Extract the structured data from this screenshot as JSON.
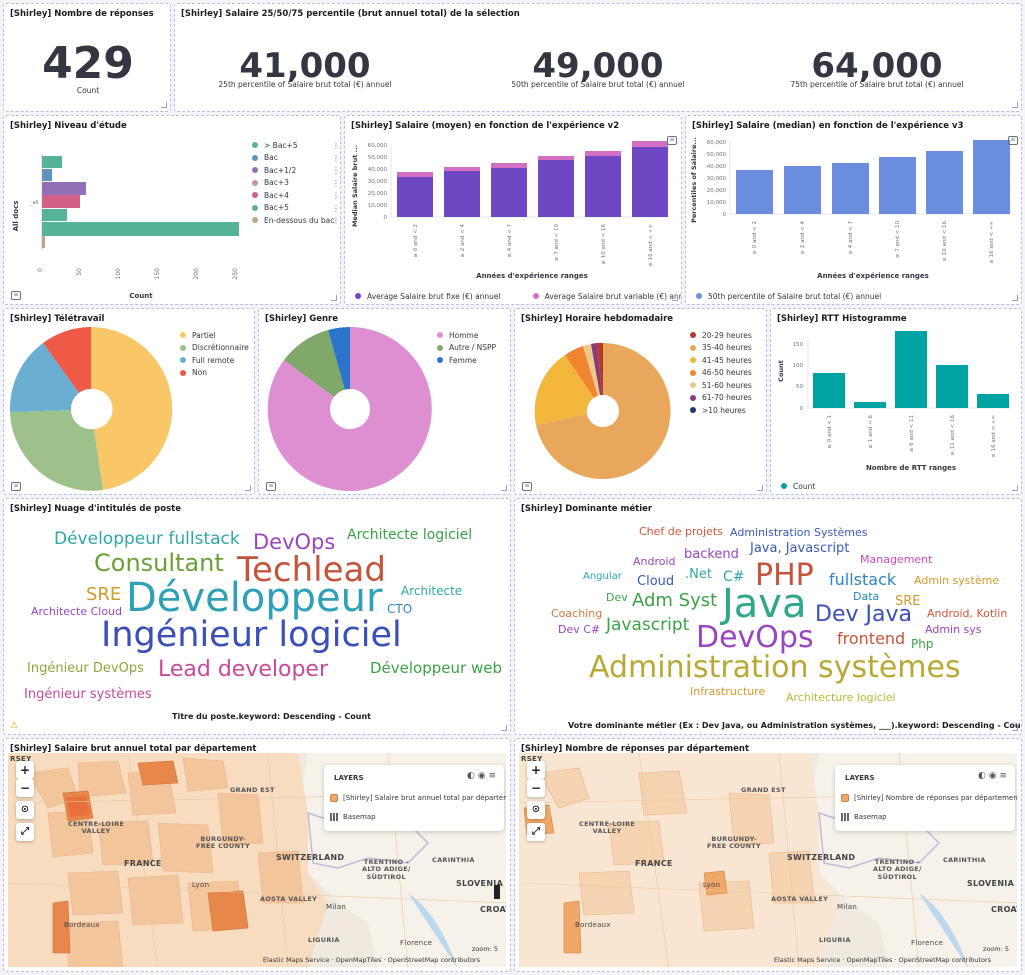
{
  "panels": {
    "count": {
      "title": "[Shirley] Nombre de réponses",
      "value": "429",
      "label": "Count"
    },
    "salary_percentiles": {
      "title": "[Shirley] Salaire 25/50/75 percentile (brut annuel total) de la sélection",
      "metrics": [
        {
          "value": "41,000",
          "label": "25th percentile of Salaire brut total (€) annuel"
        },
        {
          "value": "49,000",
          "label": "50th percentile of Salaire brut total (€) annuel"
        },
        {
          "value": "64,000",
          "label": "75th percentile of Salaire brut total (€) annuel"
        }
      ]
    },
    "niveau": {
      "title": "[Shirley] Niveau d'étude",
      "ylabel": "All docs",
      "xlabel": "Count",
      "ylabel_small": "_all",
      "xticks": [
        "0",
        "50",
        "100",
        "150",
        "200",
        "250"
      ],
      "legend": [
        {
          "label": "> Bac+5",
          "color": "#54b399"
        },
        {
          "label": "Bac",
          "color": "#6092c0"
        },
        {
          "label": "Bac+1/2",
          "color": "#9170b8"
        },
        {
          "label": "Bac+3",
          "color": "#ca8eae"
        },
        {
          "label": "Bac+4",
          "color": "#d36086"
        },
        {
          "label": "Bac+5",
          "color": "#54b399"
        },
        {
          "label": "En-dessous du bac",
          "color": "#b9a888"
        }
      ]
    },
    "salaire_moyen": {
      "title": "[Shirley] Salaire (moyen) en fonction de l'expérience v2",
      "ylabel": "Median Salaire brut ...",
      "xlabel": "Années d'expérience ranges",
      "yticks": [
        "0",
        "10,000",
        "20,000",
        "30,000",
        "40,000",
        "50,000",
        "60,000"
      ],
      "xticks": [
        "≥ 0 and < 2",
        "≥ 2 and < 4",
        "≥ 4 and < 7",
        "≥ 7 and < 10",
        "≥ 10 and < 16",
        "≥ 16 and < +∞"
      ],
      "legend": [
        {
          "label": "Average Salaire brut fixe (€) annuel",
          "color": "#6f47c2"
        },
        {
          "label": "Average Salaire brut variable (€) annuel",
          "color": "#d36fc2"
        }
      ]
    },
    "salaire_median": {
      "title": "[Shirley] Salaire (median) en fonction de l'expérience v3",
      "ylabel": "Percentiles of Salaire...",
      "xlabel": "Années d'expérience ranges",
      "yticks": [
        "0",
        "10,000",
        "20,000",
        "30,000",
        "40,000",
        "50,000",
        "60,000"
      ],
      "xticks": [
        "≥ 0 and < 2",
        "≥ 2 and < 4",
        "≥ 4 and < 7",
        "≥ 7 and < 10",
        "≥ 10 and < 16",
        "≥ 16 and < +∞"
      ],
      "legend": [
        {
          "label": "50th percentile of Salaire brut total (€) annuel",
          "color": "#6b8de0"
        }
      ]
    },
    "teletravail": {
      "title": "[Shirley] Télétravail",
      "legend": [
        {
          "label": "Partiel",
          "color": "#f9c767"
        },
        {
          "label": "Discrétionnaire",
          "color": "#9cc18a"
        },
        {
          "label": "Full remote",
          "color": "#6aaed2"
        },
        {
          "label": "Non",
          "color": "#ef5a46"
        }
      ]
    },
    "genre": {
      "title": "[Shirley] Genre",
      "legend": [
        {
          "label": "Homme",
          "color": "#de8fd2"
        },
        {
          "label": "Autre / NSPP",
          "color": "#80a86a"
        },
        {
          "label": "Femme",
          "color": "#2a74c9"
        }
      ]
    },
    "horaire": {
      "title": "[Shirley] Horaire hebdomadaire",
      "legend": [
        {
          "label": "20-29 heures",
          "color": "#b23a2a"
        },
        {
          "label": "35-40 heures",
          "color": "#e9a75c"
        },
        {
          "label": "41-45 heures",
          "color": "#f2b63a"
        },
        {
          "label": "46-50 heures",
          "color": "#f0852f"
        },
        {
          "label": "51-60 heures",
          "color": "#eec98a"
        },
        {
          "label": "61-70 heures",
          "color": "#8a3a7a"
        },
        {
          "label": ">10 heures",
          "color": "#1c3a6a"
        }
      ]
    },
    "rtt": {
      "title": "[Shirley] RTT Histogramme",
      "ylabel": "Count",
      "xlabel": "Nombre de RTT ranges",
      "yticks": [
        "0",
        "50",
        "100",
        "150"
      ],
      "xticks": [
        "≥ 0 and < 1",
        "≥ 1 and < 6",
        "≥ 6 and < 11",
        "≥ 11 and < 16",
        "≥ 16 and < +∞"
      ],
      "legend": [
        {
          "label": "Count",
          "color": "#00a3a3"
        }
      ]
    },
    "nuage_postes": {
      "title": "[Shirley] Nuage d'intitulés de poste",
      "footer": "Titre du poste.keyword: Descending - Count",
      "words": [
        {
          "text": "Développeur fullstack",
          "color": "#2fa7a7"
        },
        {
          "text": "DevOps",
          "color": "#9b45c1"
        },
        {
          "text": "Architecte logiciel",
          "color": "#3aa345"
        },
        {
          "text": "Consultant",
          "color": "#6aa035"
        },
        {
          "text": "Techlead",
          "color": "#c4543a"
        },
        {
          "text": "SRE",
          "color": "#d29a2a"
        },
        {
          "text": "Développeur",
          "color": "#2fa0b5"
        },
        {
          "text": "Architecte",
          "color": "#2fa7a7"
        },
        {
          "text": "Architecte Cloud",
          "color": "#9b45c1"
        },
        {
          "text": "CTO",
          "color": "#2a86c4"
        },
        {
          "text": "Ingénieur logiciel",
          "color": "#3a4fb8"
        },
        {
          "text": "Ingénieur DevOps",
          "color": "#8aa83a"
        },
        {
          "text": "Lead developer",
          "color": "#c84a9a"
        },
        {
          "text": "Développeur web",
          "color": "#3aa345"
        },
        {
          "text": "Ingénieur systèmes",
          "color": "#c84a9a"
        }
      ]
    },
    "dominante": {
      "title": "[Shirley] Dominante métier",
      "footer": "Votre dominante métier (Ex : Dev Java, ou Administration systèmes, ___).keyword: Descending - Count",
      "words": [
        {
          "text": "Chef de projets",
          "color": "#d2553a"
        },
        {
          "text": "Administration Systèmes",
          "color": "#3a5ab8"
        },
        {
          "text": "backend",
          "color": "#9b45c1"
        },
        {
          "text": "Java, Javascript",
          "color": "#3a5ab8"
        },
        {
          "text": "Android",
          "color": "#9b45c1"
        },
        {
          "text": "Management",
          "color": "#c84ab5"
        },
        {
          "text": "Angular",
          "color": "#2fa7a7"
        },
        {
          "text": "Cloud",
          "color": "#3a5ab8"
        },
        {
          "text": ".Net",
          "color": "#2fa7a7"
        },
        {
          "text": "C#",
          "color": "#2fa7a7"
        },
        {
          "text": "PHP",
          "color": "#c4543a"
        },
        {
          "text": "fullstack",
          "color": "#2a86c4"
        },
        {
          "text": "Admin système",
          "color": "#d29a2a"
        },
        {
          "text": "Dev",
          "color": "#3aa345"
        },
        {
          "text": "Adm Syst",
          "color": "#3aa345"
        },
        {
          "text": "Java",
          "color": "#2fa78a"
        },
        {
          "text": "Data",
          "color": "#2a86c4"
        },
        {
          "text": "SRE",
          "color": "#d29a2a"
        },
        {
          "text": "Coaching",
          "color": "#d27a3a"
        },
        {
          "text": "Dev Java",
          "color": "#3a4fb8"
        },
        {
          "text": "Android, Kotlin",
          "color": "#d2553a"
        },
        {
          "text": "Dev C#",
          "color": "#9b45c1"
        },
        {
          "text": "Javascript",
          "color": "#3aa345"
        },
        {
          "text": "DevOps",
          "color": "#9b45c1"
        },
        {
          "text": "frontend",
          "color": "#c4543a"
        },
        {
          "text": "Admin sys",
          "color": "#9b45c1"
        },
        {
          "text": "Php",
          "color": "#3aa345"
        },
        {
          "text": "Administration systèmes",
          "color": "#b8a835"
        },
        {
          "text": "Infrastructure",
          "color": "#d29a2a"
        },
        {
          "text": "Architecture logiciel",
          "color": "#b8b835"
        }
      ]
    },
    "map_salaire": {
      "title": "[Shirley] Salaire brut annuel total par département",
      "layers_title": "LAYERS",
      "layer_name": "[Shirley] Salaire brut annuel total par départem...",
      "basemap": "Basemap",
      "attribution": "Elastic Maps Service  ·  OpenMapTiles  ·  OpenStreetMap contributors",
      "zoom": "zoom: 5"
    },
    "map_reponses": {
      "title": "[Shirley] Nombre de réponses par département",
      "layers_title": "LAYERS",
      "layer_name": "[Shirley] Nombre de réponses par département",
      "basemap": "Basemap",
      "attribution": "Elastic Maps Service  ·  OpenMapTiles  ·  OpenStreetMap contributors",
      "zoom": "zoom: 5"
    }
  },
  "map_labels": [
    "FRANCE",
    "SWITZERLAND",
    "SLOVENIA",
    "CROATIA",
    "BURGUNDY-\nFREE COUNTY",
    "TRENTINO -\nALTO ADIGE/\nSÜDTIROL",
    "AOSTA VALLEY",
    "LIGURIA",
    "Milan",
    "Florence",
    "CARINTHIA",
    "CENTRE-LOIRE\nVALLEY",
    "GRAND EST",
    "RSEY",
    "Bordeaux",
    "Lyon"
  ]
}
